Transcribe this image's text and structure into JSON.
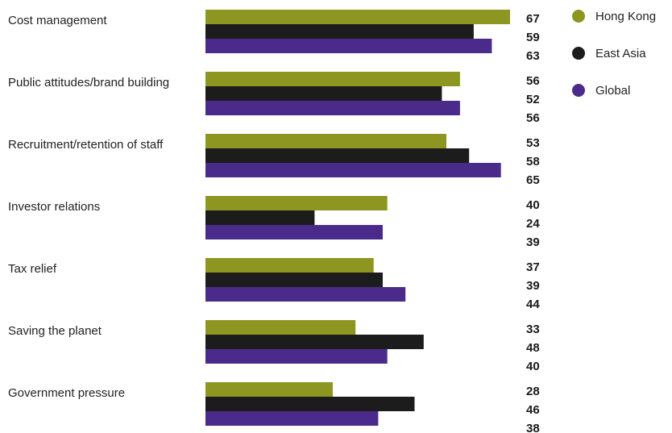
{
  "chart_data": {
    "type": "bar",
    "orientation": "horizontal",
    "categories": [
      "Cost management",
      "Public attitudes/brand building",
      "Recruitment/retention of staff",
      "Investor relations",
      "Tax relief",
      "Saving the planet",
      "Government pressure"
    ],
    "series": [
      {
        "name": "Hong Kong",
        "color": "#8c9620",
        "values": [
          67,
          56,
          53,
          40,
          37,
          33,
          28
        ]
      },
      {
        "name": "East Asia",
        "color": "#1c1c1c",
        "values": [
          59,
          52,
          58,
          24,
          39,
          48,
          46
        ]
      },
      {
        "name": "Global",
        "color": "#4a2b8c",
        "values": [
          63,
          56,
          65,
          39,
          44,
          40,
          38
        ]
      }
    ],
    "title": "",
    "xlabel": "",
    "ylabel": "",
    "xlim": [
      0,
      67
    ],
    "grid": false,
    "legend_position": "top-right",
    "data_labels": true
  }
}
